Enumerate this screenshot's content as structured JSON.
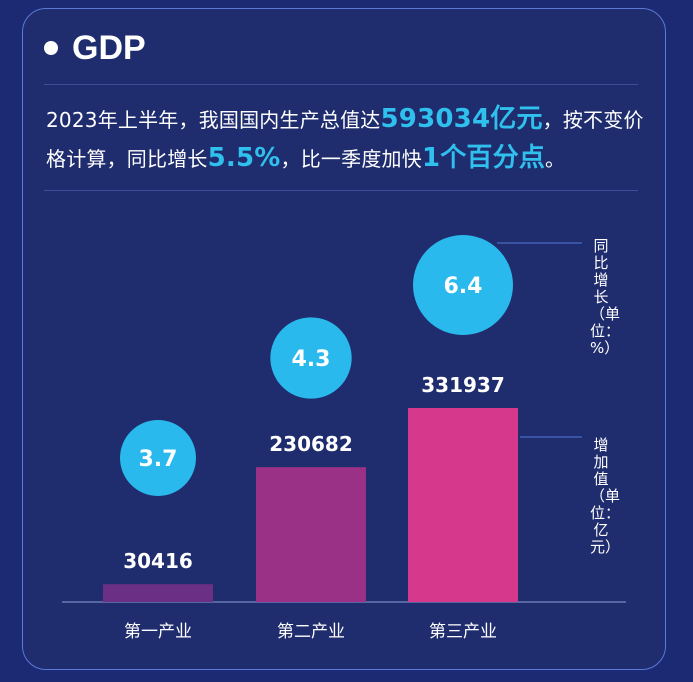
{
  "header": {
    "title": "GDP"
  },
  "summary": {
    "part1": "2023年上半年，我国国内生产总值达",
    "gdp_value": "593034亿元",
    "part2": "，按不变价格计算，同比增长",
    "growth": "5.5%",
    "part3": "，比一季度加快",
    "accel": "1个百分点",
    "part4": "。"
  },
  "legend": {
    "growth_label": "同比增长（单位：%）",
    "value_label": "增加值（单位：亿元）"
  },
  "colors": {
    "background": "#1f2c6d",
    "bubble": "#29b9ec",
    "bar_primary": "#6b2f86",
    "bar_secondary": "#9b3187",
    "bar_tertiary": "#d6388b",
    "highlight": "#2fc0ee"
  },
  "chart_data": {
    "type": "bar",
    "categories": [
      "第一产业",
      "第二产业",
      "第三产业"
    ],
    "series": [
      {
        "name": "增加值（单位：亿元）",
        "values": [
          30416,
          230682,
          331937
        ]
      },
      {
        "name": "同比增长（单位：%）",
        "values": [
          3.7,
          4.3,
          6.4
        ]
      }
    ],
    "value_labels": [
      "30416",
      "230682",
      "331937"
    ],
    "growth_labels": [
      "3.7",
      "4.3",
      "6.4"
    ],
    "title": "",
    "xlabel": "",
    "ylabel": "",
    "grid": false,
    "legend": "right"
  }
}
